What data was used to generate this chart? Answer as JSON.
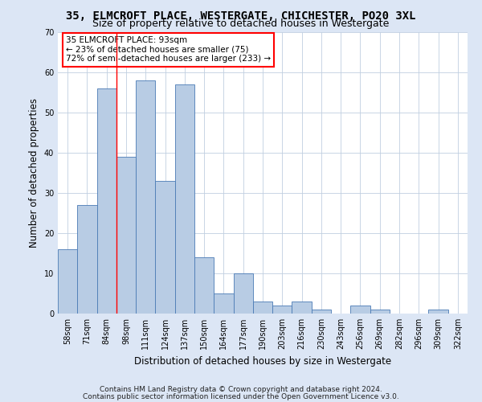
{
  "title": "35, ELMCROFT PLACE, WESTERGATE, CHICHESTER, PO20 3XL",
  "subtitle": "Size of property relative to detached houses in Westergate",
  "xlabel": "Distribution of detached houses by size in Westergate",
  "ylabel": "Number of detached properties",
  "categories": [
    "58sqm",
    "71sqm",
    "84sqm",
    "98sqm",
    "111sqm",
    "124sqm",
    "137sqm",
    "150sqm",
    "164sqm",
    "177sqm",
    "190sqm",
    "203sqm",
    "216sqm",
    "230sqm",
    "243sqm",
    "256sqm",
    "269sqm",
    "282sqm",
    "296sqm",
    "309sqm",
    "322sqm"
  ],
  "values": [
    16,
    27,
    56,
    39,
    58,
    33,
    57,
    14,
    5,
    10,
    3,
    2,
    3,
    1,
    0,
    2,
    1,
    0,
    0,
    1,
    0
  ],
  "bar_color": "#b8cce4",
  "bar_edgecolor": "#4a7ab5",
  "red_line_x": 2.5,
  "annotation_line1": "35 ELMCROFT PLACE: 93sqm",
  "annotation_line2": "← 23% of detached houses are smaller (75)",
  "annotation_line3": "72% of semi-detached houses are larger (233) →",
  "annotation_box_color": "white",
  "annotation_box_edgecolor": "red",
  "ylim": [
    0,
    70
  ],
  "yticks": [
    0,
    10,
    20,
    30,
    40,
    50,
    60,
    70
  ],
  "footer1": "Contains HM Land Registry data © Crown copyright and database right 2024.",
  "footer2": "Contains public sector information licensed under the Open Government Licence v3.0.",
  "background_color": "#dce6f5",
  "plot_background_color": "white",
  "grid_color": "#c0cfe0",
  "title_fontsize": 10,
  "subtitle_fontsize": 9,
  "axis_label_fontsize": 8.5,
  "tick_fontsize": 7,
  "annotation_fontsize": 7.5,
  "footer_fontsize": 6.5
}
